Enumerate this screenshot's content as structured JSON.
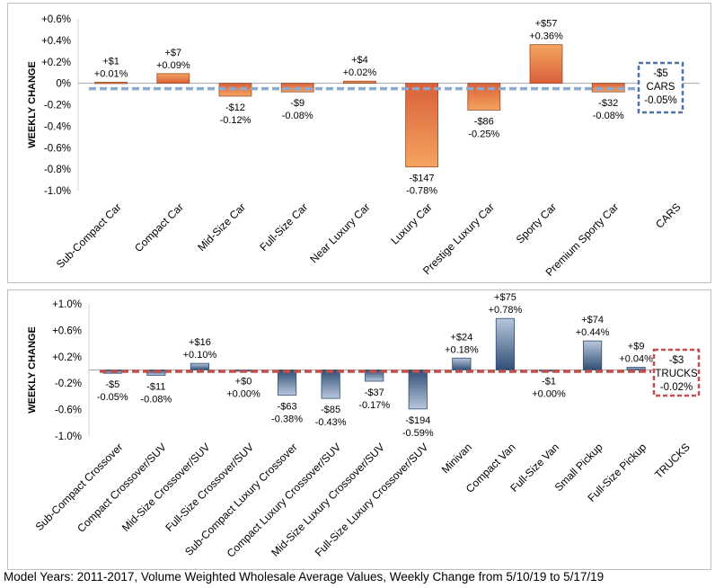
{
  "footer": "Model Years: 2011-2017, Volume Weighted Wholesale Average Values, Weekly Change from 5/10/19 to 5/17/19",
  "colors": {
    "cars_bar_light": "#f4a460",
    "cars_bar_dark": "#d9603a",
    "trucks_bar_light": "#b8c7dc",
    "trucks_bar_dark": "#2f4e75",
    "cars_avg_line": "#8ea9cf",
    "cars_box": "#4a74b0",
    "trucks_avg_line": "#c0504d",
    "trucks_box": "#c0504d"
  },
  "chart_data": [
    {
      "type": "bar",
      "ylabel": "WEEKLY CHANGE",
      "ylim": [
        -1.0,
        0.6
      ],
      "ytick_labels": [
        "+0.6%",
        "+0.4%",
        "+0.2%",
        "0%",
        "-0.2%",
        "-0.4%",
        "-0.6%",
        "-0.8%",
        "-1.0%"
      ],
      "yticks": [
        0.6,
        0.4,
        0.2,
        0,
        -0.2,
        -0.4,
        -0.6,
        -0.8,
        -1.0
      ],
      "categories": [
        "Sub-Compact Car",
        "Compact Car",
        "Mid-Size Car",
        "Full-Size Car",
        "Near Luxury Car",
        "Luxury Car",
        "Prestige Luxury Car",
        "Sporty Car",
        "Premium Sporty Car",
        "CARS"
      ],
      "values": [
        0.01,
        0.09,
        -0.12,
        -0.08,
        0.02,
        -0.78,
        -0.25,
        0.36,
        -0.08,
        null
      ],
      "dollar_labels": [
        "+$1",
        "+$7",
        "-$12",
        "-$9",
        "+$4",
        "-$147",
        "-$86",
        "+$57",
        "-$32"
      ],
      "pct_labels": [
        "+0.01%",
        "+0.09%",
        "-0.12%",
        "-0.08%",
        "+0.02%",
        "-0.78%",
        "-0.25%",
        "+0.36%",
        "-0.08%"
      ],
      "summary": {
        "dollar": "-$5",
        "name": "CARS",
        "pct": "-0.05%",
        "value": -0.05
      },
      "grid": false
    },
    {
      "type": "bar",
      "ylabel": "WEEKLY CHANGE",
      "ylim": [
        -1.0,
        1.0
      ],
      "ytick_labels": [
        "+1.0%",
        "+0.6%",
        "+0.2%",
        "-0.2%",
        "-0.6%",
        "-1.0%"
      ],
      "yticks": [
        1.0,
        0.6,
        0.2,
        -0.2,
        -0.6,
        -1.0
      ],
      "categories": [
        "Sub-Compact Crossover",
        "Compact Crossover/SUV",
        "Mid-Size Crossover/SUV",
        "Full-Size Crossover/SUV",
        "Sub-Compact Luxury Crossover",
        "Compact Luxury Crossover/SUV",
        "Mid-Size Luxury Crossover/SUV",
        "Full-Size Luxury Crossover/SUV",
        "Minivan",
        "Compact Van",
        "Full-Size Van",
        "Small Pickup",
        "Full-Size Pickup",
        "TRUCKS"
      ],
      "values": [
        -0.05,
        -0.08,
        0.1,
        0.0,
        -0.38,
        -0.43,
        -0.17,
        -0.59,
        0.18,
        0.78,
        0.0,
        0.44,
        0.04,
        null
      ],
      "dollar_labels": [
        "-$5",
        "-$11",
        "+$16",
        "+$0",
        "-$63",
        "-$85",
        "-$37",
        "-$194",
        "+$24",
        "+$75",
        "-$1",
        "+$74",
        "+$9"
      ],
      "pct_labels": [
        "-0.05%",
        "-0.08%",
        "+0.10%",
        "+0.00%",
        "-0.38%",
        "-0.43%",
        "-0.17%",
        "-0.59%",
        "+0.18%",
        "+0.78%",
        "+0.00%",
        "+0.44%",
        "+0.04%"
      ],
      "summary": {
        "dollar": "-$3",
        "name": "TRUCKS",
        "pct": "-0.02%",
        "value": -0.02
      },
      "grid": false
    }
  ]
}
